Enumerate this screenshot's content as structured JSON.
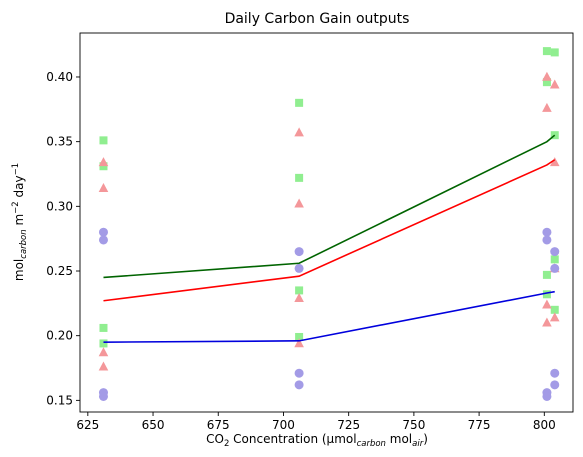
{
  "chart_data": {
    "type": "scatter",
    "title": "Daily Carbon Gain outputs",
    "xlabel": {
      "prefix": "CO",
      "prefix_sub": "2",
      "main": " Concentration (µmol",
      "main_sub": "carbon",
      "mid": " mol",
      "mid_sub": "air",
      "suffix": ")"
    },
    "ylabel": {
      "prefix": "mol",
      "prefix_sub": "carbon",
      "mid": " m",
      "mid_sup": "−2",
      "main": " day",
      "main_sup": "−1"
    },
    "xlim": [
      622,
      811
    ],
    "ylim": [
      0.141,
      0.434
    ],
    "xticks": [
      625,
      650,
      675,
      700,
      725,
      750,
      775,
      800
    ],
    "yticks": [
      0.15,
      0.2,
      0.25,
      0.3,
      0.35,
      0.4
    ],
    "ytick_labels": [
      "0.15",
      "0.20",
      "0.25",
      "0.30",
      "0.35",
      "0.40"
    ],
    "grid": false,
    "colors": {
      "green_points": "#90ee90",
      "red_points": "#f4979a",
      "blue_points": "#a39be6",
      "green_line": "#006400",
      "red_line": "#ff0000",
      "blue_line": "#0000dd"
    },
    "series": [
      {
        "marker": "square",
        "color": "#90ee90",
        "points": [
          [
            631,
            0.351
          ],
          [
            631,
            0.331
          ],
          [
            631,
            0.206
          ],
          [
            631,
            0.194
          ],
          [
            706,
            0.38
          ],
          [
            706,
            0.322
          ],
          [
            706,
            0.235
          ],
          [
            706,
            0.199
          ],
          [
            801,
            0.42
          ],
          [
            801,
            0.396
          ],
          [
            801,
            0.247
          ],
          [
            801,
            0.232
          ],
          [
            804,
            0.419
          ],
          [
            804,
            0.355
          ],
          [
            804,
            0.259
          ],
          [
            804,
            0.22
          ]
        ]
      },
      {
        "marker": "triangle",
        "color": "#f4979a",
        "points": [
          [
            631,
            0.334
          ],
          [
            631,
            0.314
          ],
          [
            631,
            0.187
          ],
          [
            631,
            0.176
          ],
          [
            706,
            0.357
          ],
          [
            706,
            0.302
          ],
          [
            706,
            0.229
          ],
          [
            706,
            0.194
          ],
          [
            801,
            0.4
          ],
          [
            801,
            0.376
          ],
          [
            801,
            0.224
          ],
          [
            801,
            0.21
          ],
          [
            804,
            0.394
          ],
          [
            804,
            0.334
          ],
          [
            804,
            0.252
          ],
          [
            804,
            0.214
          ]
        ]
      },
      {
        "marker": "circle",
        "color": "#a39be6",
        "points": [
          [
            631,
            0.28
          ],
          [
            631,
            0.274
          ],
          [
            631,
            0.156
          ],
          [
            631,
            0.153
          ],
          [
            706,
            0.265
          ],
          [
            706,
            0.252
          ],
          [
            706,
            0.171
          ],
          [
            706,
            0.162
          ],
          [
            801,
            0.28
          ],
          [
            801,
            0.274
          ],
          [
            801,
            0.156
          ],
          [
            801,
            0.153
          ],
          [
            804,
            0.265
          ],
          [
            804,
            0.252
          ],
          [
            804,
            0.171
          ],
          [
            804,
            0.162
          ]
        ]
      },
      {
        "marker": "line",
        "color": "#006400",
        "points": [
          [
            631,
            0.245
          ],
          [
            706,
            0.256
          ],
          [
            801,
            0.35
          ],
          [
            804,
            0.355
          ]
        ]
      },
      {
        "marker": "line",
        "color": "#ff0000",
        "points": [
          [
            631,
            0.227
          ],
          [
            706,
            0.246
          ],
          [
            801,
            0.332
          ],
          [
            804,
            0.336
          ]
        ]
      },
      {
        "marker": "line",
        "color": "#0000dd",
        "points": [
          [
            631,
            0.195
          ],
          [
            706,
            0.196
          ],
          [
            801,
            0.233
          ],
          [
            804,
            0.234
          ]
        ]
      }
    ]
  }
}
